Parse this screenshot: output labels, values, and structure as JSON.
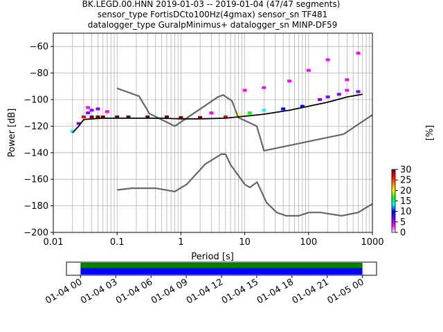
{
  "chart_data": {
    "type": "heatmap",
    "title": {
      "line1": "BK.LEGD.00.HNN   2019-01-03 -- 2019-01-04  (47/47 segments)",
      "line2": "sensor_type FortisDCto100Hz(4gmax) sensor_sn TF481",
      "line3": "datalogger_type GuralpMinimus+ datalogger_sn MINP-DF59"
    },
    "xlabel": "Period [s]",
    "ylabel": "Power [dB]",
    "x_scale": "log",
    "xlim": [
      0.01,
      1000
    ],
    "ylim": [
      -200,
      -50
    ],
    "x_ticks": [
      {
        "value": 0.01,
        "label": "0.01"
      },
      {
        "value": 0.1,
        "label": "0.1"
      },
      {
        "value": 1,
        "label": "1"
      },
      {
        "value": 10,
        "label": "10"
      },
      {
        "value": 100,
        "label": "100"
      },
      {
        "value": 1000,
        "label": "1000"
      }
    ],
    "y_ticks": [
      {
        "value": -60,
        "label": "−60"
      },
      {
        "value": -80,
        "label": "−80"
      },
      {
        "value": -100,
        "label": "−100"
      },
      {
        "value": -120,
        "label": "−120"
      },
      {
        "value": -140,
        "label": "−140"
      },
      {
        "value": -160,
        "label": "−160"
      },
      {
        "value": -180,
        "label": "−180"
      },
      {
        "value": -200,
        "label": "−200"
      }
    ],
    "grid": true,
    "colorbar": {
      "label": "[%]",
      "range": [
        0,
        30
      ],
      "ticks": [
        {
          "value": 0,
          "label": "0"
        },
        {
          "value": 5,
          "label": "5"
        },
        {
          "value": 10,
          "label": "10"
        },
        {
          "value": 15,
          "label": "15"
        },
        {
          "value": 20,
          "label": "20"
        },
        {
          "value": 25,
          "label": "25"
        },
        {
          "value": 30,
          "label": "30"
        }
      ],
      "colors": [
        "#ffffff",
        "#ff00ff",
        "#8000ff",
        "#0000ff",
        "#00ffff",
        "#00ff00",
        "#ffff00",
        "#ff8000",
        "#ff0000",
        "#800000"
      ]
    },
    "noise_model_high": {
      "x": [
        0.1,
        0.22,
        0.32,
        0.8,
        3.8,
        4.6,
        6.3,
        7.9,
        15.4,
        20,
        354.8,
        1000
      ],
      "y": [
        -91.5,
        -97.4,
        -110.5,
        -120,
        -98,
        -96.5,
        -101,
        -113.5,
        -120,
        -138.5,
        -126,
        -111.5
      ]
    },
    "noise_model_low": {
      "x": [
        0.1,
        0.17,
        0.4,
        0.8,
        1.24,
        2.4,
        4.3,
        5,
        6,
        10,
        12,
        15.6,
        21.9,
        31.6,
        45,
        70,
        101,
        154,
        328,
        600,
        1000
      ],
      "y": [
        -168,
        -166.7,
        -166.7,
        -169.2,
        -163.7,
        -148.6,
        -141.1,
        -141.1,
        -149,
        -163.8,
        -166.2,
        -162.1,
        -177.5,
        -185,
        -187.5,
        -187.5,
        -185,
        -185,
        -187.5,
        -185,
        -178.5
      ]
    },
    "mode_curve": {
      "x": [
        0.02,
        0.025,
        0.03,
        0.04,
        0.06,
        0.1,
        0.2,
        0.5,
        1,
        2,
        5,
        10,
        20,
        50,
        100,
        200,
        400,
        700
      ],
      "y": [
        -125,
        -120,
        -115,
        -114.5,
        -114,
        -114,
        -114,
        -114,
        -114.5,
        -114.5,
        -114,
        -112.5,
        -111,
        -108,
        -105,
        -102,
        -98,
        -96
      ]
    },
    "histogram_cells": [
      {
        "x": 0.02,
        "y": -124,
        "pct": 12
      },
      {
        "x": 0.025,
        "y": -118,
        "pct": 5
      },
      {
        "x": 0.03,
        "y": -113,
        "pct": 28
      },
      {
        "x": 0.035,
        "y": -110,
        "pct": 8
      },
      {
        "x": 0.035,
        "y": -106,
        "pct": 3
      },
      {
        "x": 0.04,
        "y": -113,
        "pct": 30
      },
      {
        "x": 0.04,
        "y": -108,
        "pct": 6
      },
      {
        "x": 0.05,
        "y": -113,
        "pct": 30
      },
      {
        "x": 0.05,
        "y": -107,
        "pct": 5
      },
      {
        "x": 0.06,
        "y": -113,
        "pct": 30
      },
      {
        "x": 0.07,
        "y": -109,
        "pct": 4
      },
      {
        "x": 0.1,
        "y": -113,
        "pct": 30
      },
      {
        "x": 0.15,
        "y": -113,
        "pct": 30
      },
      {
        "x": 0.3,
        "y": -113,
        "pct": 30
      },
      {
        "x": 0.6,
        "y": -113,
        "pct": 30
      },
      {
        "x": 1,
        "y": -113.5,
        "pct": 30
      },
      {
        "x": 2,
        "y": -113.5,
        "pct": 30
      },
      {
        "x": 3,
        "y": -110,
        "pct": 4
      },
      {
        "x": 5,
        "y": -113,
        "pct": 28
      },
      {
        "x": 8,
        "y": -111,
        "pct": 20
      },
      {
        "x": 10,
        "y": -93,
        "pct": 3
      },
      {
        "x": 12,
        "y": -110,
        "pct": 15
      },
      {
        "x": 20,
        "y": -108,
        "pct": 12
      },
      {
        "x": 20,
        "y": -91,
        "pct": 3
      },
      {
        "x": 40,
        "y": -107,
        "pct": 10
      },
      {
        "x": 50,
        "y": -86,
        "pct": 3
      },
      {
        "x": 80,
        "y": -105,
        "pct": 10
      },
      {
        "x": 100,
        "y": -78,
        "pct": 3
      },
      {
        "x": 150,
        "y": -100,
        "pct": 8
      },
      {
        "x": 200,
        "y": -98,
        "pct": 7
      },
      {
        "x": 200,
        "y": -70,
        "pct": 3
      },
      {
        "x": 300,
        "y": -96,
        "pct": 6
      },
      {
        "x": 400,
        "y": -93,
        "pct": 4
      },
      {
        "x": 400,
        "y": -85,
        "pct": 2
      },
      {
        "x": 600,
        "y": -94,
        "pct": 5
      },
      {
        "x": 600,
        "y": -65,
        "pct": 2
      }
    ]
  },
  "timeline": {
    "tick_labels": [
      "01-04 00",
      "01-04 03",
      "01-04 06",
      "01-04 09",
      "01-04 12",
      "01-04 15",
      "01-04 18",
      "01-04 21",
      "01-05 00"
    ],
    "range_hours": [
      -1.2,
      25.2
    ],
    "segments_colors": [
      "#008000",
      "#0000ff"
    ]
  }
}
